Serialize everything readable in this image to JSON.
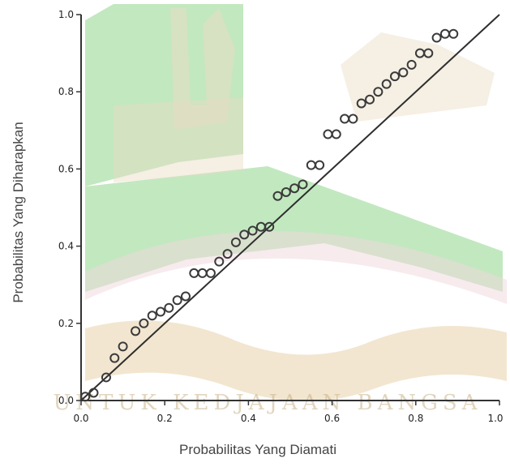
{
  "chart_data": {
    "type": "scatter",
    "title": "",
    "xlabel": "Probabilitas Yang Diamati",
    "ylabel": "Probabilitas Yang Diharapkan",
    "xlim": [
      0,
      1
    ],
    "ylim": [
      0,
      1
    ],
    "xticks": [
      "0.0",
      "0.2",
      "0.4",
      "0.6",
      "0.8",
      "1.0"
    ],
    "yticks": [
      "0.0",
      "0.2",
      "0.4",
      "0.6",
      "0.8",
      "1.0"
    ],
    "grid": false,
    "reference_line": {
      "from": [
        0,
        0
      ],
      "to": [
        1,
        1
      ]
    },
    "points": [
      [
        0.01,
        0.01
      ],
      [
        0.03,
        0.02
      ],
      [
        0.06,
        0.06
      ],
      [
        0.08,
        0.11
      ],
      [
        0.1,
        0.14
      ],
      [
        0.13,
        0.18
      ],
      [
        0.15,
        0.2
      ],
      [
        0.17,
        0.22
      ],
      [
        0.19,
        0.23
      ],
      [
        0.21,
        0.24
      ],
      [
        0.23,
        0.26
      ],
      [
        0.25,
        0.27
      ],
      [
        0.27,
        0.33
      ],
      [
        0.29,
        0.33
      ],
      [
        0.31,
        0.33
      ],
      [
        0.33,
        0.36
      ],
      [
        0.35,
        0.38
      ],
      [
        0.37,
        0.41
      ],
      [
        0.39,
        0.43
      ],
      [
        0.41,
        0.44
      ],
      [
        0.43,
        0.45
      ],
      [
        0.45,
        0.45
      ],
      [
        0.47,
        0.53
      ],
      [
        0.49,
        0.54
      ],
      [
        0.51,
        0.55
      ],
      [
        0.53,
        0.56
      ],
      [
        0.55,
        0.61
      ],
      [
        0.57,
        0.61
      ],
      [
        0.59,
        0.69
      ],
      [
        0.61,
        0.69
      ],
      [
        0.63,
        0.73
      ],
      [
        0.65,
        0.73
      ],
      [
        0.67,
        0.77
      ],
      [
        0.69,
        0.78
      ],
      [
        0.71,
        0.8
      ],
      [
        0.73,
        0.82
      ],
      [
        0.75,
        0.84
      ],
      [
        0.77,
        0.85
      ],
      [
        0.79,
        0.87
      ],
      [
        0.81,
        0.9
      ],
      [
        0.83,
        0.9
      ],
      [
        0.85,
        0.94
      ],
      [
        0.87,
        0.95
      ],
      [
        0.89,
        0.95
      ]
    ],
    "marker_color": "#3a3a3a",
    "line_color": "#2e2e2e"
  },
  "background": {
    "color": "#ffffff",
    "watermark_colors": {
      "green": "#8fd58a",
      "tan": "#e9dcc3",
      "pink": "#f0d7de",
      "gold": "#d9b777"
    },
    "watermark_text": "UNTUK   KEDJAJAAN   BANGSA",
    "logo_shape": "university-emblem"
  }
}
